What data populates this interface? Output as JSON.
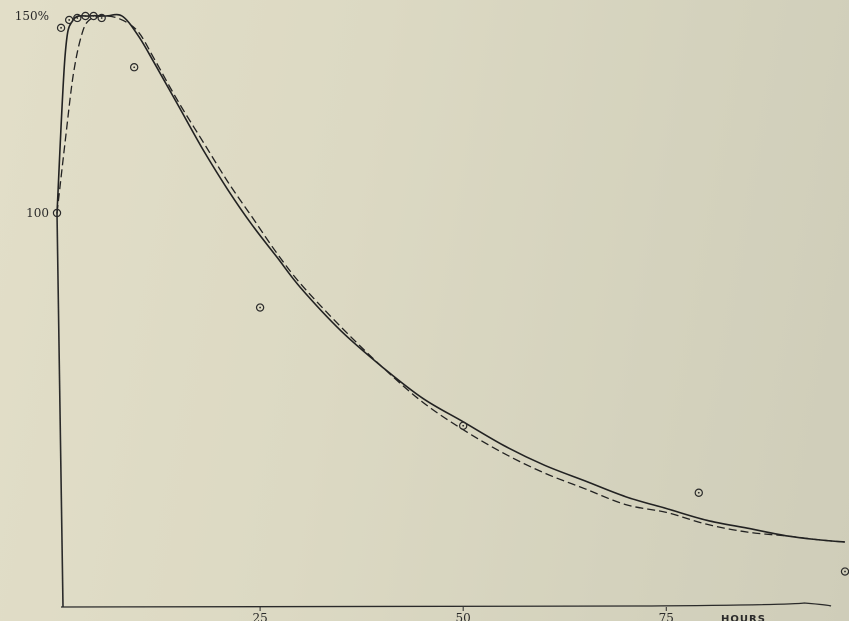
{
  "chart_data": {
    "type": "line",
    "title": "",
    "xlabel": "HOURS",
    "ylabel": "",
    "xlim": [
      0,
      97
    ],
    "ylim": [
      0,
      150
    ],
    "x_ticks": [
      {
        "value": 25,
        "label": "25"
      },
      {
        "value": 50,
        "label": "50"
      },
      {
        "value": 75,
        "label": "75"
      }
    ],
    "y_ticks": [
      {
        "value": 100,
        "label": "100"
      },
      {
        "value": 150,
        "label": "150%"
      }
    ],
    "grid": false,
    "legend": "none",
    "series": [
      {
        "style": "solid-line",
        "x": [
          0,
          1,
          2,
          4,
          6,
          8,
          10,
          12,
          15,
          18,
          21,
          24,
          27,
          30,
          35,
          40,
          45,
          50,
          55,
          60,
          65,
          70,
          75,
          80,
          85,
          90,
          94,
          97
        ],
        "y": [
          100,
          140,
          149,
          150,
          150,
          150,
          145,
          138,
          127,
          116,
          106,
          97,
          89,
          81,
          70,
          61,
          53,
          47,
          41,
          36,
          32,
          28,
          25,
          22,
          20,
          18,
          17,
          16.5
        ]
      },
      {
        "style": "dashed-line",
        "x": [
          0,
          1,
          2,
          3,
          4,
          6,
          8,
          10,
          12,
          15,
          18,
          21,
          24,
          27,
          30,
          35,
          40,
          45,
          50,
          55,
          60,
          65,
          70,
          75,
          80,
          85,
          90,
          94,
          97
        ],
        "y": [
          100,
          118,
          135,
          145,
          149,
          150,
          149,
          146,
          139,
          128,
          118,
          108,
          99,
          90,
          82,
          71,
          61,
          52,
          45,
          39,
          34,
          30,
          26,
          24,
          21,
          19,
          18,
          17,
          16.5
        ]
      },
      {
        "style": "markers",
        "x": [
          0,
          0.5,
          1.5,
          2.5,
          3.5,
          4.5,
          5.5,
          9.5,
          25,
          50,
          79,
          97
        ],
        "y": [
          100,
          147,
          149,
          149.5,
          150,
          150,
          149.5,
          137,
          76,
          46,
          29,
          9
        ]
      }
    ]
  }
}
